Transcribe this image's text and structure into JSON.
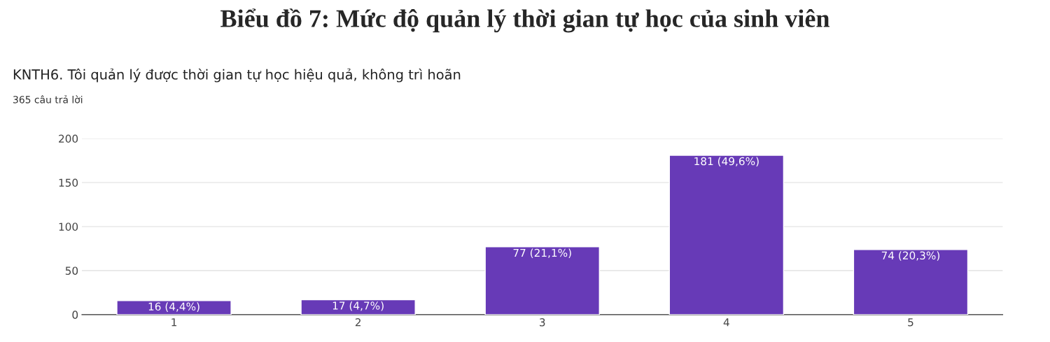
{
  "chart_data": {
    "type": "bar",
    "title": "Biểu đồ 7: Mức độ quản lý thời gian tự học của sinh viên",
    "subtitle": "KNTH6. Tôi quản lý được thời gian tự học hiệu quả, không trì hoãn",
    "annotations": [
      "365 câu trả lời"
    ],
    "categories": [
      "1",
      "2",
      "3",
      "4",
      "5"
    ],
    "values": [
      16,
      17,
      77,
      181,
      74
    ],
    "value_labels": [
      "16 (4,4%)",
      "17 (4,7%)",
      "77 (21,1%)",
      "181 (49,6%)",
      "74 (20,3%)"
    ],
    "color": "#673ab7",
    "ylim": [
      0,
      200
    ],
    "yticks": [
      0,
      50,
      100,
      150,
      200
    ],
    "grid": "y"
  }
}
